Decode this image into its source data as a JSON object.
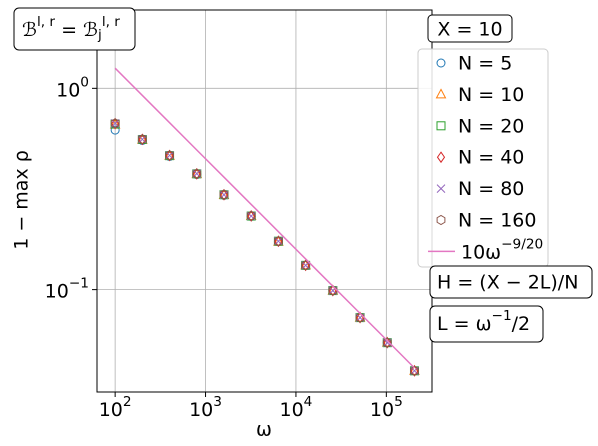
{
  "chart_data": {
    "type": "scatter",
    "xscale": "log",
    "yscale": "log",
    "grid": true,
    "xlabel": "ω",
    "ylabel": "1 − max ρ",
    "xlim": [
      63,
      320000
    ],
    "ylim": [
      0.031,
      2.45
    ],
    "xticks": [
      {
        "value": 100,
        "label": "10^{2}"
      },
      {
        "value": 1000,
        "label": "10^{3}"
      },
      {
        "value": 10000,
        "label": "10^{4}"
      },
      {
        "value": 100000,
        "label": "10^{5}"
      }
    ],
    "yticks": [
      {
        "value": 1,
        "label": "10^{0}"
      },
      {
        "value": 0.1,
        "label": "10^{−1}"
      }
    ],
    "x": [
      100,
      200,
      400,
      800,
      1600,
      3200,
      6400,
      12800,
      25600,
      51200,
      102400,
      204800
    ],
    "legend_title": "X = 10",
    "series": [
      {
        "name": "N = 5",
        "color": "#1f77b4",
        "marker": "circle",
        "values": [
          0.62,
          0.551,
          0.459,
          0.373,
          0.294,
          0.231,
          0.173,
          0.132,
          0.0989,
          0.0726,
          0.0545,
          0.0395
        ]
      },
      {
        "name": "N = 10",
        "color": "#ff7f0e",
        "marker": "triangle",
        "values": [
          0.66,
          0.555,
          0.462,
          0.375,
          0.295,
          0.232,
          0.173,
          0.132,
          0.0989,
          0.0726,
          0.0545,
          0.0395
        ]
      },
      {
        "name": "N = 20",
        "color": "#2ca02c",
        "marker": "square",
        "values": [
          0.665,
          0.557,
          0.463,
          0.376,
          0.296,
          0.232,
          0.174,
          0.132,
          0.0989,
          0.0726,
          0.0545,
          0.0395
        ]
      },
      {
        "name": "N = 40",
        "color": "#d62728",
        "marker": "diamond",
        "values": [
          0.668,
          0.558,
          0.464,
          0.376,
          0.296,
          0.232,
          0.174,
          0.132,
          0.0989,
          0.0726,
          0.0545,
          0.0395
        ]
      },
      {
        "name": "N = 80",
        "color": "#9467bd",
        "marker": "x",
        "values": [
          0.67,
          0.558,
          0.464,
          0.377,
          0.296,
          0.232,
          0.174,
          0.132,
          0.0989,
          0.0726,
          0.0545,
          0.0395
        ]
      },
      {
        "name": "N = 160",
        "color": "#8c564b",
        "marker": "hexagon",
        "values": [
          0.67,
          0.559,
          0.465,
          0.377,
          0.297,
          0.233,
          0.174,
          0.132,
          0.0989,
          0.0726,
          0.0545,
          0.0395
        ]
      },
      {
        "name": "10ω^{−9/20}",
        "color": "#e377c2",
        "marker": "line",
        "values": [
          1.259,
          0.922,
          0.675,
          0.494,
          0.362,
          0.265,
          0.194,
          0.142,
          0.104,
          0.0762,
          0.0558,
          0.0408
        ]
      }
    ],
    "annotations": [
      "ℬ^{l, r} = ℬ_{j}^{l, r}",
      "H = (X − 2L)/N",
      "L = ω^{−1}/2"
    ]
  }
}
